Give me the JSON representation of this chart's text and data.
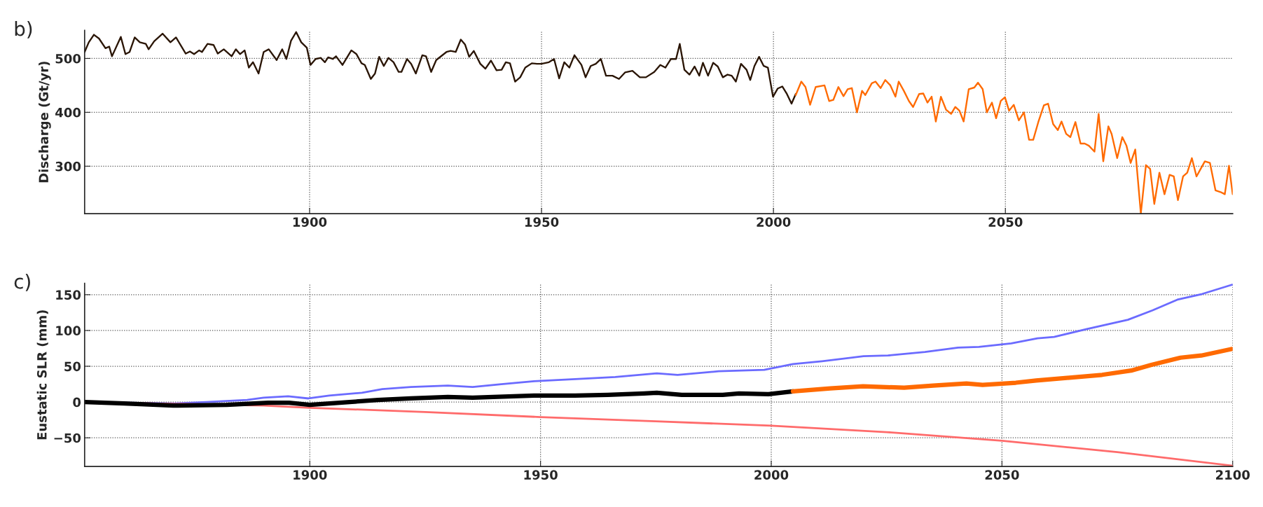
{
  "chart_data": [
    {
      "type": "line",
      "ylabel": "Discharge (Gt/yr)",
      "annotations": [
        "b)"
      ],
      "xlim": [
        1851.5,
        2099
      ],
      "ylim": [
        212,
        552
      ],
      "xticks": [
        1900,
        1950,
        2000,
        2050
      ],
      "yticks": [
        300,
        400,
        500
      ],
      "grid": true,
      "legend": false,
      "series": [
        {
          "color": "#2a1505",
          "x": [
            1851.5,
            1852.4,
            1853.5,
            1854.6,
            1856,
            1856.8,
            1857.4,
            1859.3,
            1860.3,
            1861.2,
            1862.3,
            1863.4,
            1864.7,
            1865.3,
            1866.5,
            1868.3,
            1870,
            1871.2,
            1873.3,
            1874.2,
            1875.1,
            1876.2,
            1876.8,
            1878,
            1879.3,
            1880.2,
            1881.5,
            1883.2,
            1884.1,
            1885,
            1886,
            1886.9,
            1887.8,
            1889,
            1890.1,
            1891.2,
            1892.9,
            1894.1,
            1895,
            1896,
            1897.1,
            1898.2,
            1899.4,
            1900.2,
            1901.3,
            1902.4,
            1903.3,
            1904,
            1905,
            1905.7,
            1907.1,
            1909,
            1910.1,
            1911.2,
            1911.9,
            1913.2,
            1914.1,
            1915,
            1916,
            1917,
            1918.1,
            1919.2,
            1919.8,
            1921,
            1921.9,
            1922.9,
            1924.3,
            1925.1,
            1926.2,
            1927.3,
            1929.5,
            1930.4,
            1931.5,
            1932.6,
            1933.5,
            1934.4,
            1935.4,
            1936.8,
            1937.9,
            1939.1,
            1940.3,
            1941.4,
            1942.3,
            1943.2,
            1944.3,
            1945.4,
            1946.5,
            1947.9,
            1949,
            1950,
            1951.6,
            1952.7,
            1953.8,
            1954.9,
            1956,
            1957.1,
            1958.6,
            1959.5,
            1960.6,
            1961.7,
            1962.8,
            1963.9,
            1965.3,
            1966.7,
            1968,
            1969.6,
            1971.2,
            1972.5,
            1974.3,
            1975.6,
            1976.7,
            1977.9,
            1979,
            1979.8,
            1980.8,
            1981.9,
            1983,
            1984,
            1984.8,
            1985.9,
            1987,
            1988,
            1989.1,
            1990.1,
            1991,
            1991.9,
            1993,
            1994.2,
            1995,
            1995.9,
            1996.9,
            1997.9,
            1998.8,
            1999.9,
            2000.9,
            2001.9,
            2002.9,
            2003.9,
            2004.8
          ],
          "values": [
            512,
            530,
            544,
            537,
            519,
            522,
            504,
            540,
            508,
            512,
            539,
            530,
            527,
            517,
            532,
            546,
            530,
            539,
            509,
            513,
            508,
            515,
            512,
            527,
            525,
            509,
            517,
            504,
            517,
            508,
            515,
            483,
            493,
            472,
            512,
            517,
            497,
            517,
            499,
            533,
            549,
            530,
            520,
            488,
            499,
            501,
            493,
            502,
            499,
            504,
            488,
            515,
            508,
            491,
            488,
            462,
            472,
            503,
            486,
            501,
            493,
            475,
            475,
            499,
            490,
            472,
            506,
            504,
            475,
            497,
            512,
            514,
            512,
            535,
            526,
            503,
            514,
            490,
            481,
            496,
            478,
            479,
            493,
            491,
            457,
            465,
            483,
            491,
            490,
            490,
            493,
            499,
            463,
            493,
            483,
            506,
            488,
            465,
            486,
            490,
            499,
            468,
            468,
            462,
            474,
            477,
            465,
            465,
            475,
            488,
            483,
            499,
            499,
            527,
            479,
            470,
            485,
            468,
            492,
            468,
            492,
            485,
            465,
            470,
            468,
            457,
            490,
            479,
            460,
            486,
            503,
            486,
            483,
            429,
            444,
            448,
            434,
            416,
            434
          ]
        },
        {
          "color": "#ff6a00",
          "x": [
            2004.8,
            2006,
            2006.9,
            2007.9,
            2009.1,
            2010.4,
            2011,
            2012,
            2012.9,
            2014,
            2015.1,
            2016,
            2016.9,
            2018,
            2019.1,
            2019.8,
            2021.2,
            2022,
            2023.1,
            2024.1,
            2025.2,
            2026.3,
            2027,
            2028.1,
            2029.2,
            2030.1,
            2031.4,
            2032.3,
            2033.2,
            2034.1,
            2035,
            2036.1,
            2037.2,
            2038.3,
            2039.2,
            2040.1,
            2041,
            2042.1,
            2043.3,
            2044.1,
            2045.1,
            2046,
            2047.1,
            2048,
            2049,
            2049.9,
            2050.8,
            2051.8,
            2052.9,
            2054,
            2055.1,
            2056,
            2057.1,
            2058.3,
            2059.2,
            2060.3,
            2061.3,
            2062.1,
            2063.1,
            2064,
            2065.1,
            2066.2,
            2067.1,
            2068,
            2069.2,
            2070.1,
            2071.1,
            2072.2,
            2072.9,
            2074.1,
            2075.2,
            2076.1,
            2077,
            2078,
            2079.2,
            2080.3,
            2081.2,
            2082.1,
            2083.2,
            2084.3,
            2085.4,
            2086.3,
            2087.2,
            2088.3,
            2089.2,
            2090.2,
            2091.2,
            2092.1,
            2093,
            2094.1,
            2095.3,
            2096.4,
            2097.3,
            2098.2,
            2099
          ],
          "values": [
            432,
            457,
            447,
            414,
            447,
            449,
            450,
            421,
            423,
            447,
            430,
            443,
            445,
            400,
            440,
            432,
            454,
            457,
            445,
            460,
            450,
            429,
            457,
            440,
            421,
            410,
            434,
            435,
            418,
            429,
            383,
            429,
            405,
            397,
            410,
            403,
            383,
            443,
            446,
            455,
            443,
            400,
            418,
            389,
            421,
            428,
            403,
            414,
            385,
            400,
            349,
            349,
            382,
            413,
            416,
            378,
            367,
            383,
            360,
            354,
            382,
            342,
            342,
            338,
            327,
            397,
            309,
            374,
            360,
            315,
            354,
            338,
            306,
            331,
            212,
            302,
            295,
            230,
            288,
            248,
            284,
            281,
            237,
            281,
            288,
            315,
            281,
            295,
            309,
            306,
            255,
            252,
            248,
            301,
            248
          ]
        }
      ]
    },
    {
      "type": "line",
      "ylabel": "Eustatic SLR (mm)",
      "annotations": [
        "c)"
      ],
      "xlim": [
        1851.2,
        2100
      ],
      "ylim": [
        -90,
        166
      ],
      "xticks": [
        1900,
        1950,
        2000,
        2050,
        2100
      ],
      "yticks": [
        {
          "value": -50,
          "label": "−50"
        },
        0,
        50,
        100,
        150
      ],
      "grid": true,
      "legend": false,
      "series": [
        {
          "color": "#6b6bff",
          "x": [
            1851.3,
            1870.4,
            1877.5,
            1886.4,
            1890,
            1895.3,
            1899.7,
            1904.2,
            1911.3,
            1915.7,
            1921.9,
            1929.9,
            1935.3,
            1941.5,
            1948.6,
            1957.5,
            1966.2,
            1975.2,
            1979.7,
            1988.6,
            1998.5,
            2004.7,
            2011,
            2020,
            2025.3,
            2033.3,
            2040.5,
            2045,
            2052,
            2057.7,
            2061.3,
            2068.4,
            2077.3,
            2082.6,
            2088,
            2093.4,
            2099.9
          ],
          "values": [
            0,
            -2,
            0,
            3,
            6,
            8,
            5,
            9,
            13,
            18,
            21,
            23,
            21,
            25,
            29,
            32,
            35,
            40,
            38,
            43,
            45,
            53,
            57,
            64,
            65,
            70,
            76,
            77,
            82,
            89,
            91,
            102,
            115,
            128,
            143,
            151,
            164
          ]
        },
        {
          "color": "#ff6b6b",
          "x": [
            1851.3,
            1890,
            1900,
            1925,
            1950,
            1975,
            2000,
            2025,
            2050,
            2075,
            2100
          ],
          "values": [
            0,
            -5,
            -8,
            -14,
            -21,
            -27,
            -33,
            -42,
            -54,
            -70,
            -89
          ]
        },
        {
          "color": "#000000",
          "x": [
            1851.3,
            1859.8,
            1870.4,
            1882,
            1891,
            1895.5,
            1900,
            1908.6,
            1914.8,
            1921.9,
            1929.9,
            1935.3,
            1944.2,
            1948.6,
            1957.5,
            1964.6,
            1972.4,
            1975.2,
            1980.6,
            1989.5,
            1993,
            1999.4,
            2004.7
          ],
          "values": [
            0,
            -2,
            -5,
            -4,
            -1,
            -1,
            -4,
            0,
            3,
            5,
            7,
            6,
            8,
            9,
            9,
            10,
            12,
            13,
            10,
            10,
            12,
            11,
            15
          ]
        },
        {
          "color": "#ff6a00",
          "x": [
            2004.7,
            2012.8,
            2019.9,
            2028.8,
            2035.1,
            2042.3,
            2045.8,
            2053,
            2057.4,
            2064.6,
            2071.7,
            2078,
            2082.4,
            2088.7,
            2093.2,
            2099.7
          ],
          "values": [
            15,
            19,
            22,
            20,
            23,
            26,
            24,
            27,
            30,
            34,
            38,
            44,
            52,
            62,
            65,
            74
          ]
        }
      ]
    }
  ]
}
